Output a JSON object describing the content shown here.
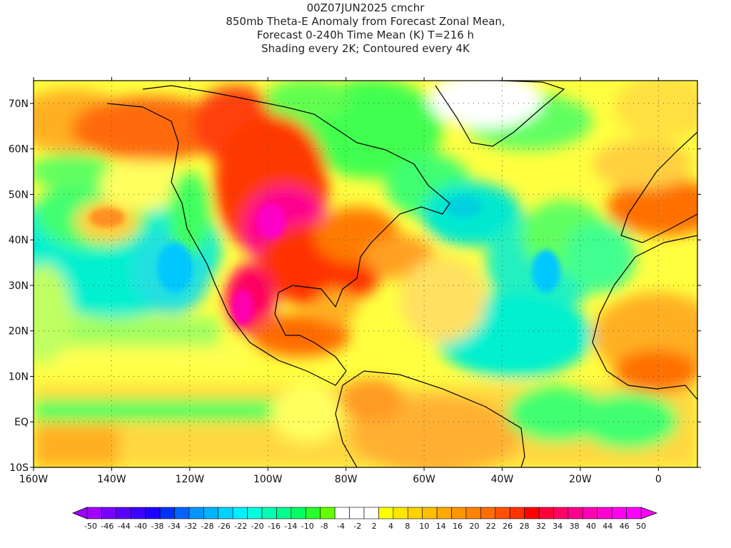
{
  "title": {
    "lines": [
      "00Z07JUN2025 cmchr",
      "850mb Theta-E Anomaly from Forecast Zonal Mean,",
      "Forecast 0-240h Time Mean (K) T=216 h",
      "Shading every 2K; Contoured every 4K"
    ]
  },
  "map": {
    "lat_range": [
      -10,
      75
    ],
    "lon_range": [
      -160,
      10
    ],
    "lat_ticks": [
      {
        "value": 70,
        "label": "70N"
      },
      {
        "value": 60,
        "label": "60N"
      },
      {
        "value": 50,
        "label": "50N"
      },
      {
        "value": 40,
        "label": "40N"
      },
      {
        "value": 30,
        "label": "30N"
      },
      {
        "value": 20,
        "label": "20N"
      },
      {
        "value": 10,
        "label": "10N"
      },
      {
        "value": 0,
        "label": "EQ"
      },
      {
        "value": -10,
        "label": "10S"
      }
    ],
    "lon_ticks": [
      {
        "value": -160,
        "label": "160W"
      },
      {
        "value": -140,
        "label": "140W"
      },
      {
        "value": -120,
        "label": "120W"
      },
      {
        "value": -100,
        "label": "100W"
      },
      {
        "value": -80,
        "label": "80W"
      },
      {
        "value": -60,
        "label": "60W"
      },
      {
        "value": -40,
        "label": "40W"
      },
      {
        "value": -20,
        "label": "20W"
      },
      {
        "value": 0,
        "label": "0"
      }
    ]
  },
  "colorbar": {
    "colors": [
      "#a000ff",
      "#7a00ff",
      "#5a00ff",
      "#3c00ff",
      "#1e00ff",
      "#0032ff",
      "#0064ff",
      "#0096ff",
      "#00b4ff",
      "#00d2ff",
      "#00f0ff",
      "#00ffdc",
      "#00ffb4",
      "#00ff8c",
      "#00ff64",
      "#28ff28",
      "#64ff00",
      "#ffffff",
      "#ffffff",
      "#ffffff",
      "#ffff00",
      "#ffe600",
      "#ffd200",
      "#ffbe00",
      "#ffaa00",
      "#ff9600",
      "#ff8200",
      "#ff6e00",
      "#ff5000",
      "#ff3200",
      "#ff0000",
      "#ff003c",
      "#ff0064",
      "#ff008c",
      "#ff00b4",
      "#ff00d2",
      "#ff00f0",
      "#ff00ff"
    ],
    "labels": [
      "-50",
      "-46",
      "-44",
      "-40",
      "-38",
      "-34",
      "-32",
      "-28",
      "-26",
      "-22",
      "-20",
      "-16",
      "-14",
      "-10",
      "-8",
      "-4",
      "-2",
      "2",
      "4",
      "8",
      "10",
      "14",
      "16",
      "20",
      "22",
      "26",
      "28",
      "32",
      "34",
      "38",
      "40",
      "44",
      "46",
      "50"
    ]
  },
  "field_colors": {
    "cyan": "#00f0d0",
    "green": "#40ff40",
    "lightgreen": "#a0ff50",
    "yellow": "#ffff30",
    "gold": "#ffd000",
    "orange": "#ffa000",
    "darkorange": "#ff7000",
    "red": "#ff2a00",
    "magenta": "#ff00a0",
    "lightblue": "#00c8ff",
    "white": "#ffffff"
  }
}
